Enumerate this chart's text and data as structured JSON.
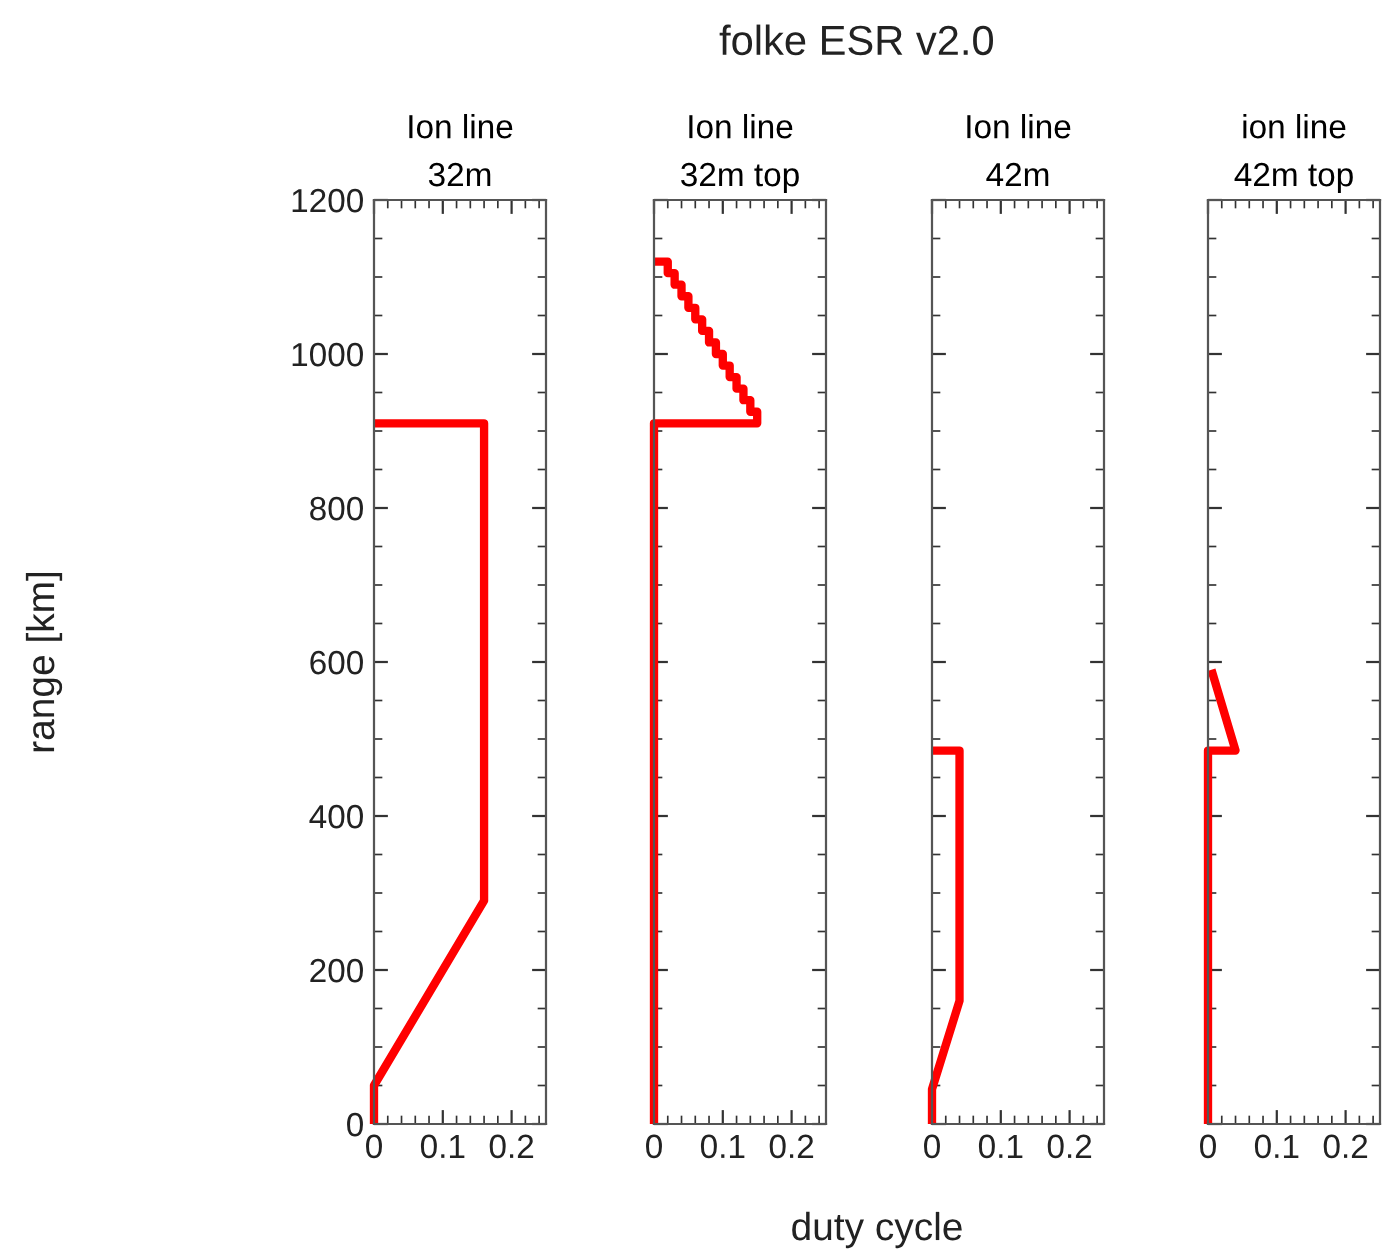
{
  "chart_data": [
    {
      "type": "line",
      "subtitle": "Ion line\n32m",
      "ylabel": "range [km]",
      "xlim": [
        0,
        0.25
      ],
      "xticks": [
        0,
        0.1,
        0.2
      ],
      "ylim": [
        0,
        1200
      ],
      "yticks": [
        0,
        200,
        400,
        600,
        800,
        1000,
        1200
      ],
      "grid": false,
      "legend": false,
      "series": [
        {
          "color": "#ff0000",
          "x": [
            0,
            0,
            0.16,
            0.16,
            0
          ],
          "values": [
            0,
            50,
            290,
            910,
            910
          ]
        }
      ]
    },
    {
      "type": "line",
      "subtitle": "Ion line\n32m top",
      "xlim": [
        0,
        0.25
      ],
      "xticks": [
        0,
        0.1,
        0.2
      ],
      "ylim": [
        0,
        1200
      ],
      "yticks": [
        0,
        200,
        400,
        600,
        800,
        1000,
        1200
      ],
      "tick_labels": "x",
      "grid": false,
      "legend": false,
      "series": [
        {
          "color": "#ff0000",
          "x": [
            0,
            0,
            0.15,
            0.15,
            0.14,
            0.14,
            0.13,
            0.13,
            0.12,
            0.12,
            0.11,
            0.11,
            0.1,
            0.1,
            0.09,
            0.09,
            0.08,
            0.08,
            0.07,
            0.07,
            0.06,
            0.06,
            0.05,
            0.05,
            0.04,
            0.04,
            0.03,
            0.03,
            0.02,
            0.02,
            0
          ],
          "values": [
            0,
            910,
            910,
            925,
            925,
            940,
            940,
            955,
            955,
            970,
            970,
            985,
            985,
            1000,
            1000,
            1015,
            1015,
            1030,
            1030,
            1045,
            1045,
            1060,
            1060,
            1075,
            1075,
            1090,
            1090,
            1105,
            1105,
            1120,
            1120
          ]
        }
      ]
    },
    {
      "type": "line",
      "subtitle": "Ion line\n42m",
      "xlim": [
        0,
        0.25
      ],
      "xticks": [
        0,
        0.1,
        0.2
      ],
      "ylim": [
        0,
        1200
      ],
      "yticks": [
        0,
        200,
        400,
        600,
        800,
        1000,
        1200
      ],
      "tick_labels": "x",
      "grid": false,
      "legend": false,
      "series": [
        {
          "color": "#ff0000",
          "x": [
            0,
            0,
            0.04,
            0.04,
            0
          ],
          "values": [
            0,
            45,
            160,
            485,
            485
          ]
        }
      ]
    },
    {
      "type": "line",
      "subtitle": "ion line\n42m top",
      "xlim": [
        0,
        0.25
      ],
      "xticks": [
        0,
        0.1,
        0.2
      ],
      "ylim": [
        0,
        1200
      ],
      "yticks": [
        0,
        200,
        400,
        600,
        800,
        1000,
        1200
      ],
      "tick_labels": "x",
      "grid": false,
      "legend": false,
      "series": [
        {
          "color": "#ff0000",
          "x": [
            0,
            0,
            0.04,
            0.005
          ],
          "values": [
            0,
            485,
            485,
            590
          ]
        }
      ]
    },
    {
      "type": "other",
      "title": "folke ESR v2.0",
      "xlabel": "duty cycle"
    }
  ]
}
